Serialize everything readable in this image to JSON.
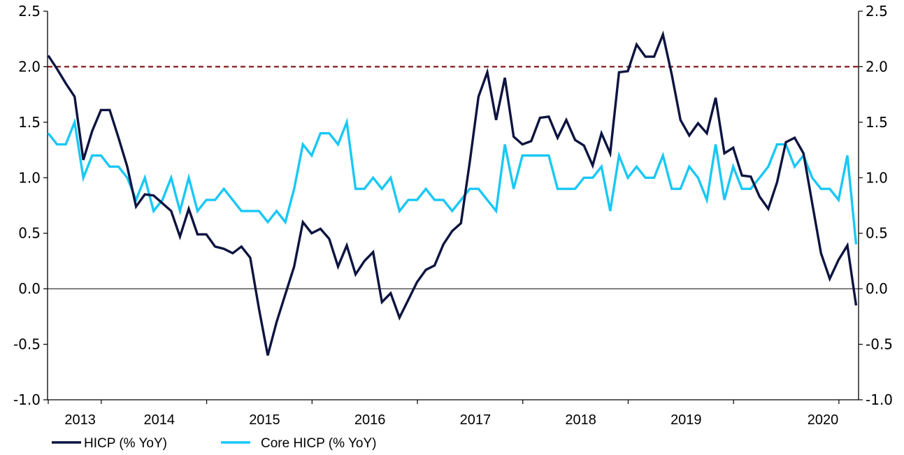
{
  "chart_data": {
    "type": "line",
    "title": "",
    "xlabel": "",
    "ylabel": "",
    "ylim": [
      -1.0,
      2.5
    ],
    "yticks": [
      "2.5",
      "2.0",
      "1.5",
      "1.0",
      "0.5",
      "0.0",
      "-0.5",
      "-1.0"
    ],
    "xticks": [
      "2013",
      "2014",
      "2015",
      "2016",
      "2017",
      "2018",
      "2019",
      "2020"
    ],
    "reference_line": {
      "value": 2.0,
      "style": "dashed",
      "color": "#7b0f0f"
    },
    "legend_position": "bottom-left",
    "series": [
      {
        "name": "HICP (% YoY)",
        "color": "#0d1440",
        "start": "2012-07",
        "values": [
          2.1,
          1.98,
          1.85,
          1.73,
          1.16,
          1.42,
          1.61,
          1.61,
          1.36,
          1.1,
          0.74,
          0.85,
          0.84,
          0.77,
          0.7,
          0.47,
          0.72,
          0.49,
          0.49,
          0.38,
          0.36,
          0.32,
          0.38,
          0.28,
          -0.18,
          -0.6,
          -0.3,
          -0.05,
          0.2,
          0.6,
          0.5,
          0.54,
          0.45,
          0.2,
          0.39,
          0.13,
          0.25,
          0.33,
          -0.12,
          -0.04,
          -0.26,
          -0.1,
          0.06,
          0.17,
          0.21,
          0.4,
          0.52,
          0.59,
          1.14,
          1.73,
          1.95,
          1.52,
          1.9,
          1.37,
          1.3,
          1.33,
          1.54,
          1.55,
          1.36,
          1.52,
          1.34,
          1.29,
          1.11,
          1.4,
          1.22,
          1.95,
          1.96,
          2.2,
          2.09,
          2.09,
          2.29,
          1.93,
          1.52,
          1.38,
          1.49,
          1.4,
          1.72,
          1.22,
          1.27,
          1.02,
          1.01,
          0.83,
          0.72,
          0.96,
          1.32,
          1.36,
          1.22,
          0.77,
          0.32,
          0.09,
          0.26,
          0.39,
          -0.15
        ]
      },
      {
        "name": "Core HICP (% YoY)",
        "color": "#19c8f5",
        "start": "2012-07",
        "values": [
          1.4,
          1.3,
          1.3,
          1.5,
          1.0,
          1.2,
          1.2,
          1.1,
          1.1,
          1.0,
          0.8,
          1.0,
          0.7,
          0.8,
          1.0,
          0.7,
          1.0,
          0.7,
          0.8,
          0.8,
          0.9,
          0.8,
          0.7,
          0.7,
          0.7,
          0.6,
          0.7,
          0.6,
          0.9,
          1.3,
          1.2,
          1.4,
          1.4,
          1.3,
          1.5,
          0.9,
          0.9,
          1.0,
          0.9,
          1.0,
          0.7,
          0.8,
          0.8,
          0.9,
          0.8,
          0.8,
          0.7,
          0.8,
          0.9,
          0.9,
          0.8,
          0.7,
          1.3,
          0.9,
          1.2,
          1.2,
          1.2,
          1.2,
          0.9,
          0.9,
          0.9,
          1.0,
          1.0,
          1.1,
          0.7,
          1.2,
          1.0,
          1.1,
          1.0,
          1.0,
          1.2,
          0.9,
          0.9,
          1.1,
          1.0,
          0.8,
          1.3,
          0.8,
          1.1,
          0.9,
          0.9,
          1.0,
          1.1,
          1.3,
          1.3,
          1.1,
          1.2,
          1.0,
          0.9,
          0.9,
          0.8,
          1.2,
          0.4
        ]
      }
    ]
  }
}
